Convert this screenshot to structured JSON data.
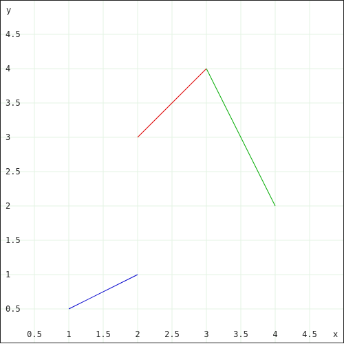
{
  "chart_data": {
    "type": "line",
    "title": "",
    "xlabel": "x",
    "ylabel": "y",
    "xlim": [
      0,
      5
    ],
    "ylim": [
      0,
      5
    ],
    "grid": true,
    "x_ticks": [
      "0.5",
      "1",
      "1.5",
      "2",
      "2.5",
      "3",
      "3.5",
      "4",
      "4.5"
    ],
    "y_ticks": [
      "0.5",
      "1",
      "1.5",
      "2",
      "2.5",
      "3",
      "3.5",
      "4",
      "4.5"
    ],
    "segments": [
      {
        "points": [
          [
            1,
            0.5
          ],
          [
            2,
            1
          ]
        ],
        "color": "#0000cc"
      },
      {
        "points": [
          [
            2,
            3
          ],
          [
            3,
            4
          ]
        ],
        "color": "#dd0000"
      },
      {
        "points": [
          [
            3,
            4
          ],
          [
            4,
            2
          ]
        ],
        "color": "#00aa00"
      }
    ]
  }
}
